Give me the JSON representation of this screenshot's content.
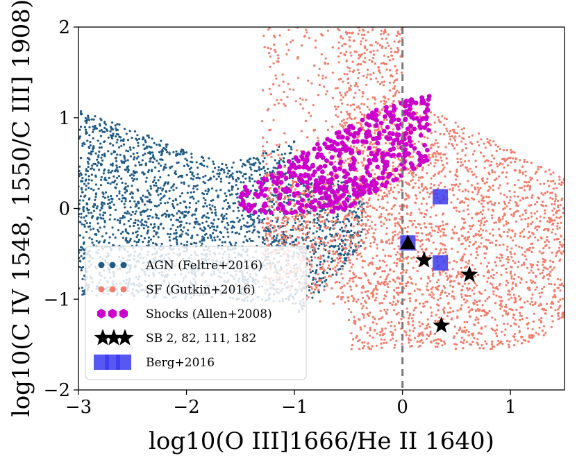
{
  "chart_data": {
    "type": "scatter",
    "title": "",
    "xlabel": "log10(O III]1666/He II 1640)",
    "ylabel": "log10(C IV 1548, 1550/C III] 1908)",
    "xlim": [
      -3,
      1.5
    ],
    "ylim": [
      -2,
      2
    ],
    "xticks": [
      -3,
      -2,
      -1,
      0,
      1
    ],
    "yticks": [
      -2,
      -1,
      0,
      1,
      2
    ],
    "xtick_labels": [
      "−3",
      "−2",
      "−1",
      "0",
      "1"
    ],
    "ytick_labels": [
      "−2",
      "−1",
      "0",
      "1",
      "2"
    ],
    "grid": false,
    "legend_position": "lower-left",
    "vline_x": 0,
    "colors": {
      "agn": "#1f5a85",
      "sf": "#f47c6a",
      "shocks": "#cc00cc",
      "sb": "#000000",
      "berg": "#3a3af0",
      "vline": "#7a7a7a"
    },
    "series": [
      {
        "name": "AGN (Feltre+2016)",
        "key": "agn",
        "marker": "dot",
        "region": {
          "x": [
            -3.0,
            -0.35
          ],
          "y": [
            -1.2,
            1.2
          ],
          "n": 2600
        }
      },
      {
        "name": "SF (Gutkin+2016)",
        "key": "sf",
        "marker": "dot",
        "region": {
          "x": [
            -1.3,
            1.5
          ],
          "y": [
            -1.55,
            2.0
          ],
          "n": 4200
        }
      },
      {
        "name": "Shocks (Allen+2008)",
        "key": "shocks",
        "marker": "hexagon",
        "region": {
          "x": [
            -1.5,
            0.25
          ],
          "y": [
            -0.05,
            1.25
          ],
          "n": 520
        }
      },
      {
        "name": "SB 2, 82, 111, 182",
        "key": "sb",
        "marker": "star",
        "points": [
          {
            "x": 0.2,
            "y": -0.57
          },
          {
            "x": 0.62,
            "y": -0.73
          },
          {
            "x": 0.36,
            "y": -1.29
          }
        ]
      },
      {
        "name": "Berg+2016",
        "key": "berg",
        "marker": "square",
        "points": [
          {
            "x": 0.35,
            "y": 0.13
          },
          {
            "x": 0.05,
            "y": -0.38
          },
          {
            "x": 0.35,
            "y": -0.6
          }
        ]
      }
    ],
    "triangle_marker": {
      "x": 0.05,
      "y": -0.38
    },
    "legend": [
      {
        "label": "AGN (Feltre+2016)",
        "key": "agn"
      },
      {
        "label": "SF (Gutkin+2016)",
        "key": "sf"
      },
      {
        "label": "Shocks (Allen+2008)",
        "key": "shocks"
      },
      {
        "label": "SB 2, 82, 111, 182",
        "key": "sb"
      },
      {
        "label": "Berg+2016",
        "key": "berg"
      }
    ]
  }
}
